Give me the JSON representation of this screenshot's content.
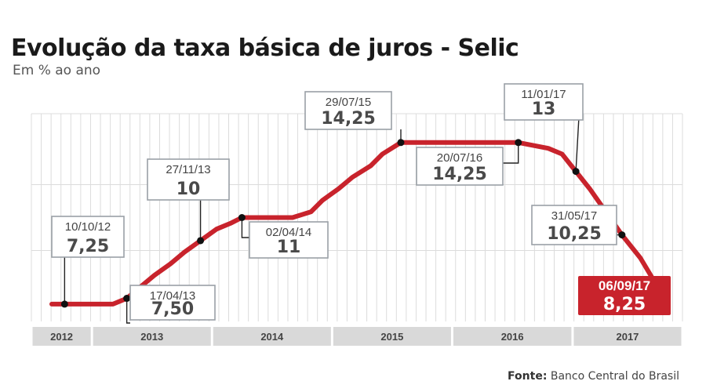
{
  "title": "Evolução da taxa básica de juros - Selic",
  "subtitle": "Em % ao ano",
  "source_label": "Fonte:",
  "source_value": "Banco Central do Brasil",
  "colors": {
    "line": "#c8232c",
    "highlight_box": "#c8232c",
    "label_border": "#9aa0a6",
    "axis_band": "#d9d9d9",
    "grid": "#dcdcdc"
  },
  "chart_data": {
    "type": "line",
    "title": "Evolução da taxa básica de juros - Selic",
    "ylabel": "Em % ao ano",
    "years": [
      "2012",
      "2013",
      "2014",
      "2015",
      "2016",
      "2017"
    ],
    "x": [
      "2012-09-01",
      "2012-10-10",
      "2012-12-05",
      "2013-01-16",
      "2013-03-06",
      "2013-04-17",
      "2013-05-29",
      "2013-07-10",
      "2013-08-28",
      "2013-10-09",
      "2013-11-27",
      "2014-01-15",
      "2014-02-26",
      "2014-04-02",
      "2014-05-28",
      "2014-07-16",
      "2014-09-03",
      "2014-10-29",
      "2014-12-03",
      "2015-01-21",
      "2015-03-04",
      "2015-04-29",
      "2015-06-03",
      "2015-07-29",
      "2015-12-31",
      "2016-07-20",
      "2016-10-19",
      "2016-11-30",
      "2017-01-11",
      "2017-02-22",
      "2017-04-12",
      "2017-05-31",
      "2017-07-26",
      "2017-09-06"
    ],
    "y": [
      7.25,
      7.25,
      7.25,
      7.25,
      7.25,
      7.5,
      8.0,
      8.5,
      9.0,
      9.5,
      10.0,
      10.5,
      10.75,
      11.0,
      11.0,
      11.0,
      11.0,
      11.25,
      11.75,
      12.25,
      12.75,
      13.25,
      13.75,
      14.25,
      14.25,
      14.25,
      14.0,
      13.75,
      13.0,
      12.25,
      11.25,
      10.25,
      9.25,
      8.25
    ],
    "annotations": [
      {
        "date": "10/10/12",
        "value": "7,25",
        "x": "2012-10-10",
        "y": 7.25,
        "highlight": false
      },
      {
        "date": "17/04/13",
        "value": "7,50",
        "x": "2013-04-17",
        "y": 7.5,
        "highlight": false
      },
      {
        "date": "27/11/13",
        "value": "10",
        "x": "2013-11-27",
        "y": 10.0,
        "highlight": false
      },
      {
        "date": "02/04/14",
        "value": "11",
        "x": "2014-04-02",
        "y": 11.0,
        "highlight": false
      },
      {
        "date": "29/07/15",
        "value": "14,25",
        "x": "2015-07-29",
        "y": 14.25,
        "highlight": false
      },
      {
        "date": "20/07/16",
        "value": "14,25",
        "x": "2016-07-20",
        "y": 14.25,
        "highlight": false
      },
      {
        "date": "11/01/17",
        "value": "13",
        "x": "2017-01-11",
        "y": 13.0,
        "highlight": false
      },
      {
        "date": "31/05/17",
        "value": "10,25",
        "x": "2017-05-31",
        "y": 10.25,
        "highlight": false
      },
      {
        "date": "06/09/17",
        "value": "8,25",
        "x": "2017-09-06",
        "y": 8.25,
        "highlight": true
      }
    ],
    "ylim": [
      6.5,
      15.5
    ],
    "grid": true,
    "legend": "none"
  }
}
